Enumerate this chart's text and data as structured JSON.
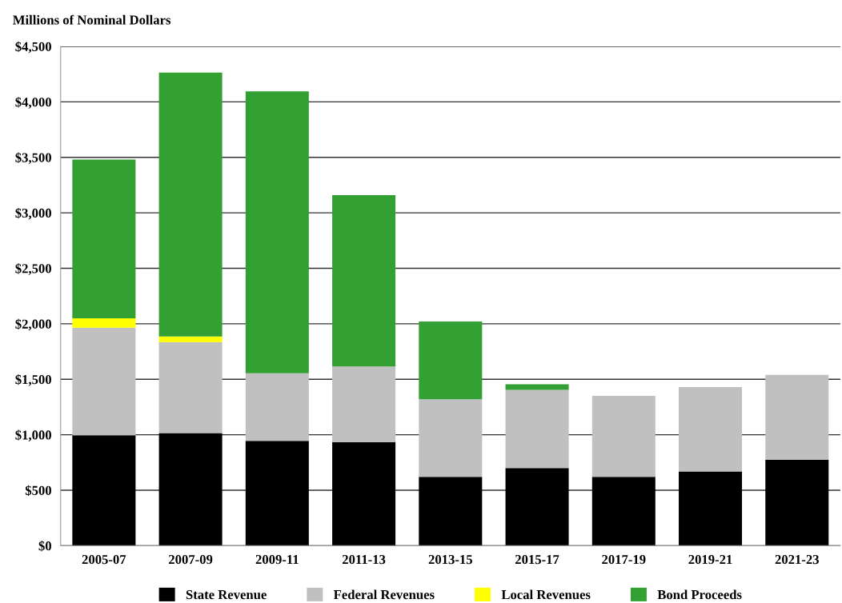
{
  "chart_data": {
    "type": "bar",
    "subtitle": "Millions of Nominal Dollars",
    "categories": [
      "2005-07",
      "2007-09",
      "2009-11",
      "2011-13",
      "2013-15",
      "2015-17",
      "2017-19",
      "2019-21",
      "2021-23"
    ],
    "stacked": true,
    "series": [
      {
        "name": "State Revenue",
        "color": "#000000",
        "values": [
          995,
          1015,
          945,
          935,
          620,
          700,
          620,
          670,
          775
        ]
      },
      {
        "name": "Federal Revenues",
        "color": "#c0c0c0",
        "values": [
          970,
          820,
          610,
          680,
          700,
          705,
          730,
          760,
          765
        ]
      },
      {
        "name": "Local Revenues",
        "color": "#ffff00",
        "values": [
          85,
          50,
          0,
          0,
          0,
          0,
          0,
          0,
          0
        ]
      },
      {
        "name": "Bond Proceeds",
        "color": "#33a033",
        "values": [
          1430,
          2380,
          2540,
          1545,
          700,
          50,
          0,
          0,
          0
        ]
      }
    ],
    "ylim": [
      0,
      4500
    ],
    "yticks": [
      {
        "value": 0,
        "label": "$0"
      },
      {
        "value": 500,
        "label": "$500"
      },
      {
        "value": 1000,
        "label": "$1,000"
      },
      {
        "value": 1500,
        "label": "$1,500"
      },
      {
        "value": 2000,
        "label": "$2,000"
      },
      {
        "value": 2500,
        "label": "$2,500"
      },
      {
        "value": 3000,
        "label": "$3,000"
      },
      {
        "value": 3500,
        "label": "$3,500"
      },
      {
        "value": 4000,
        "label": "$4,000"
      },
      {
        "value": 4500,
        "label": "$4,500"
      }
    ],
    "grid": "y",
    "legend": "bottom"
  }
}
